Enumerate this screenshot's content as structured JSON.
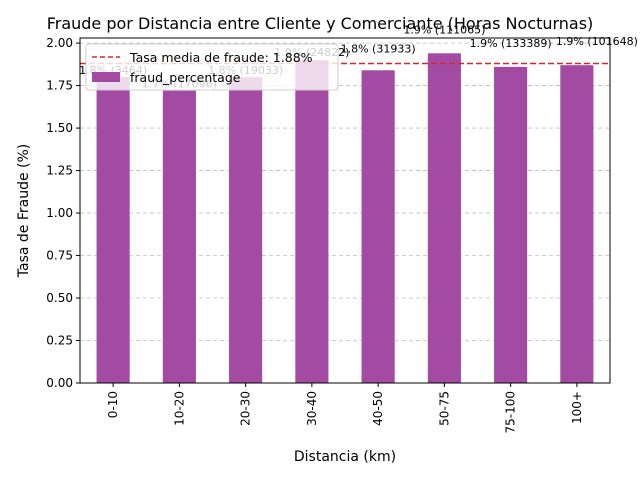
{
  "chart_data": {
    "type": "bar",
    "title": "Fraude por Distancia entre Cliente y Comerciante (Horas Nocturnas)",
    "xlabel": "Distancia (km)",
    "ylabel": "Tasa de Fraude (%)",
    "categories": [
      "0-10",
      "10-20",
      "20-30",
      "30-40",
      "40-50",
      "50-75",
      "75-100",
      "100+"
    ],
    "series": [
      {
        "name": "fraud_percentage",
        "values": [
          1.8,
          1.72,
          1.8,
          1.9,
          1.84,
          1.94,
          1.86,
          1.87
        ],
        "color": "#a34aa3"
      }
    ],
    "data_labels": [
      "1.8% (3464)",
      "1.7% (17096)",
      "1.8% (19033)",
      "1.9% (24822)",
      "1.8% (31933)",
      "1.9% (111065)",
      "1.9% (133389)",
      "1.9% (101648)"
    ],
    "reference_line": {
      "value": 1.88,
      "label": "Tasa media de fraude: 1.88%",
      "color": "#d62728",
      "style": "dashed"
    },
    "ylim": [
      0,
      2.03
    ],
    "yticks": [
      "0.00",
      "0.25",
      "0.50",
      "0.75",
      "1.00",
      "1.25",
      "1.50",
      "1.75",
      "2.00"
    ],
    "grid": "horizontal-dashed",
    "legend_position": "top-left"
  }
}
